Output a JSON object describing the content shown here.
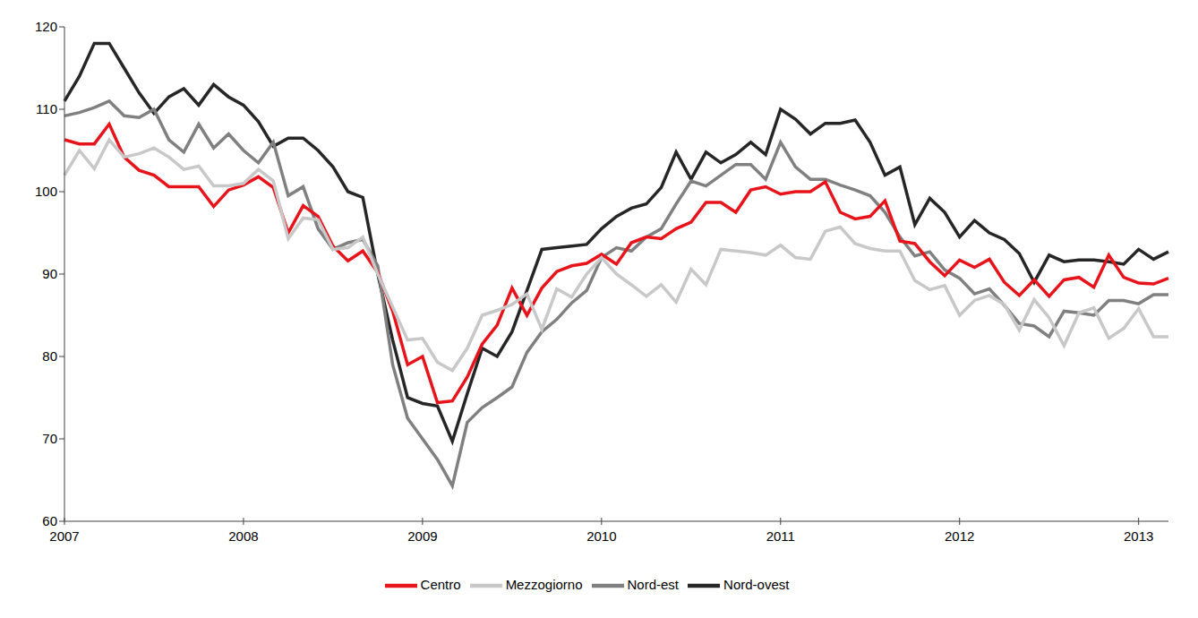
{
  "chart_data": {
    "type": "line",
    "categories": [
      "2007",
      null,
      null,
      null,
      null,
      null,
      null,
      null,
      null,
      null,
      null,
      null,
      "2008",
      null,
      null,
      null,
      null,
      null,
      null,
      null,
      null,
      null,
      null,
      null,
      "2009",
      null,
      null,
      null,
      null,
      null,
      null,
      null,
      null,
      null,
      null,
      null,
      "2010",
      null,
      null,
      null,
      null,
      null,
      null,
      null,
      null,
      null,
      null,
      null,
      "2011",
      null,
      null,
      null,
      null,
      null,
      null,
      null,
      null,
      null,
      null,
      null,
      "2012",
      null,
      null,
      null,
      null,
      null,
      null,
      null,
      null,
      null,
      null,
      null,
      "2013",
      null,
      null
    ],
    "series": [
      {
        "name": "Nord-ovest",
        "color": "#262626",
        "values": [
          111,
          114,
          118,
          118,
          115,
          112,
          109.5,
          111.5,
          112.5,
          110.5,
          113,
          111.5,
          110.5,
          108.5,
          105.5,
          106.5,
          106.5,
          105,
          103,
          100,
          99.3,
          90,
          82,
          75,
          74.3,
          74,
          69.7,
          75.5,
          81,
          80,
          83,
          88,
          93,
          93.2,
          93.4,
          93.6,
          95.5,
          97,
          98,
          98.5,
          100.5,
          104.8,
          101.5,
          104.8,
          103.5,
          104.5,
          106,
          104.5,
          110,
          108.8,
          107,
          108.3,
          108.3,
          108.7,
          106,
          102,
          103,
          96,
          99.2,
          97.5,
          94.5,
          96.5,
          95,
          94.2,
          92.5,
          89,
          92.3,
          91.5,
          91.7,
          91.7,
          91.5,
          91.2,
          93,
          91.8,
          92.7
        ]
      },
      {
        "name": "Nord-est",
        "color": "#808080",
        "values": [
          109.2,
          109.6,
          110.2,
          111,
          109.2,
          109,
          110,
          106.3,
          104.8,
          108.2,
          105.3,
          107,
          105,
          103.5,
          106,
          99.5,
          100.6,
          95.5,
          93,
          93.8,
          94.2,
          91,
          79,
          72.5,
          70,
          67.5,
          64.3,
          72,
          73.8,
          75,
          76.3,
          80.5,
          83,
          84.5,
          86.5,
          88,
          92,
          93.2,
          92.8,
          94.5,
          95.5,
          98.5,
          101.3,
          100.7,
          102,
          103.3,
          103.3,
          101.5,
          106,
          103,
          101.5,
          101.5,
          100.8,
          100.2,
          99.5,
          97.5,
          94.5,
          92.2,
          92.7,
          90.5,
          89.5,
          87.6,
          88.2,
          86.2,
          84,
          83.7,
          82.4,
          85.5,
          85.3,
          85,
          86.8,
          86.8,
          86.4,
          87.5,
          87.5
        ]
      },
      {
        "name": "Centro",
        "color": "#e8141b",
        "values": [
          106.3,
          105.8,
          105.8,
          108.2,
          104.2,
          102.6,
          102,
          100.6,
          100.6,
          100.6,
          98.2,
          100.2,
          100.8,
          101.8,
          100.5,
          95,
          98.3,
          97,
          93.4,
          91.6,
          92.8,
          90.2,
          85.5,
          79,
          80,
          74.4,
          74.6,
          77.5,
          81.5,
          83.8,
          88.3,
          85,
          88.3,
          90.3,
          91,
          91.3,
          92.4,
          91.2,
          93.8,
          94.5,
          94.3,
          95.5,
          96.3,
          98.7,
          98.7,
          97.5,
          100.2,
          100.6,
          99.7,
          100,
          100,
          101.2,
          97.5,
          96.7,
          97,
          98.9,
          94,
          93.7,
          91.5,
          89.8,
          91.7,
          90.8,
          91.8,
          89,
          87.4,
          89.3,
          87.3,
          89.3,
          89.6,
          88.4,
          92.3,
          89.6,
          88.9,
          88.8,
          89.5
        ]
      },
      {
        "name": "Mezzogiorno",
        "color": "#c8c8c8",
        "values": [
          102,
          105,
          102.8,
          106.3,
          104.2,
          104.6,
          105.3,
          104.2,
          102.7,
          103.1,
          100.7,
          100.7,
          101,
          102.7,
          101.3,
          94.3,
          96.8,
          96.6,
          93,
          93.2,
          94.5,
          90,
          86,
          82,
          82.2,
          79.3,
          78.3,
          81,
          85,
          85.6,
          86.3,
          87.6,
          83.3,
          88.2,
          87.2,
          90,
          92,
          90,
          88.7,
          87.3,
          88.7,
          86.6,
          90.6,
          88.7,
          93,
          92.8,
          92.6,
          92.3,
          93.5,
          92,
          91.8,
          95.2,
          95.7,
          93.7,
          93.1,
          92.8,
          92.8,
          89.2,
          88.1,
          88.6,
          85,
          86.8,
          87.4,
          86.3,
          83.2,
          86.9,
          84.7,
          81.3,
          85.3,
          85.9,
          82.2,
          83.4,
          85.8,
          82.4,
          82.4
        ]
      }
    ],
    "ylim": [
      60,
      120
    ],
    "yticks": [
      60,
      70,
      80,
      90,
      100,
      110,
      120
    ],
    "grid": false,
    "legend": "bottom"
  }
}
